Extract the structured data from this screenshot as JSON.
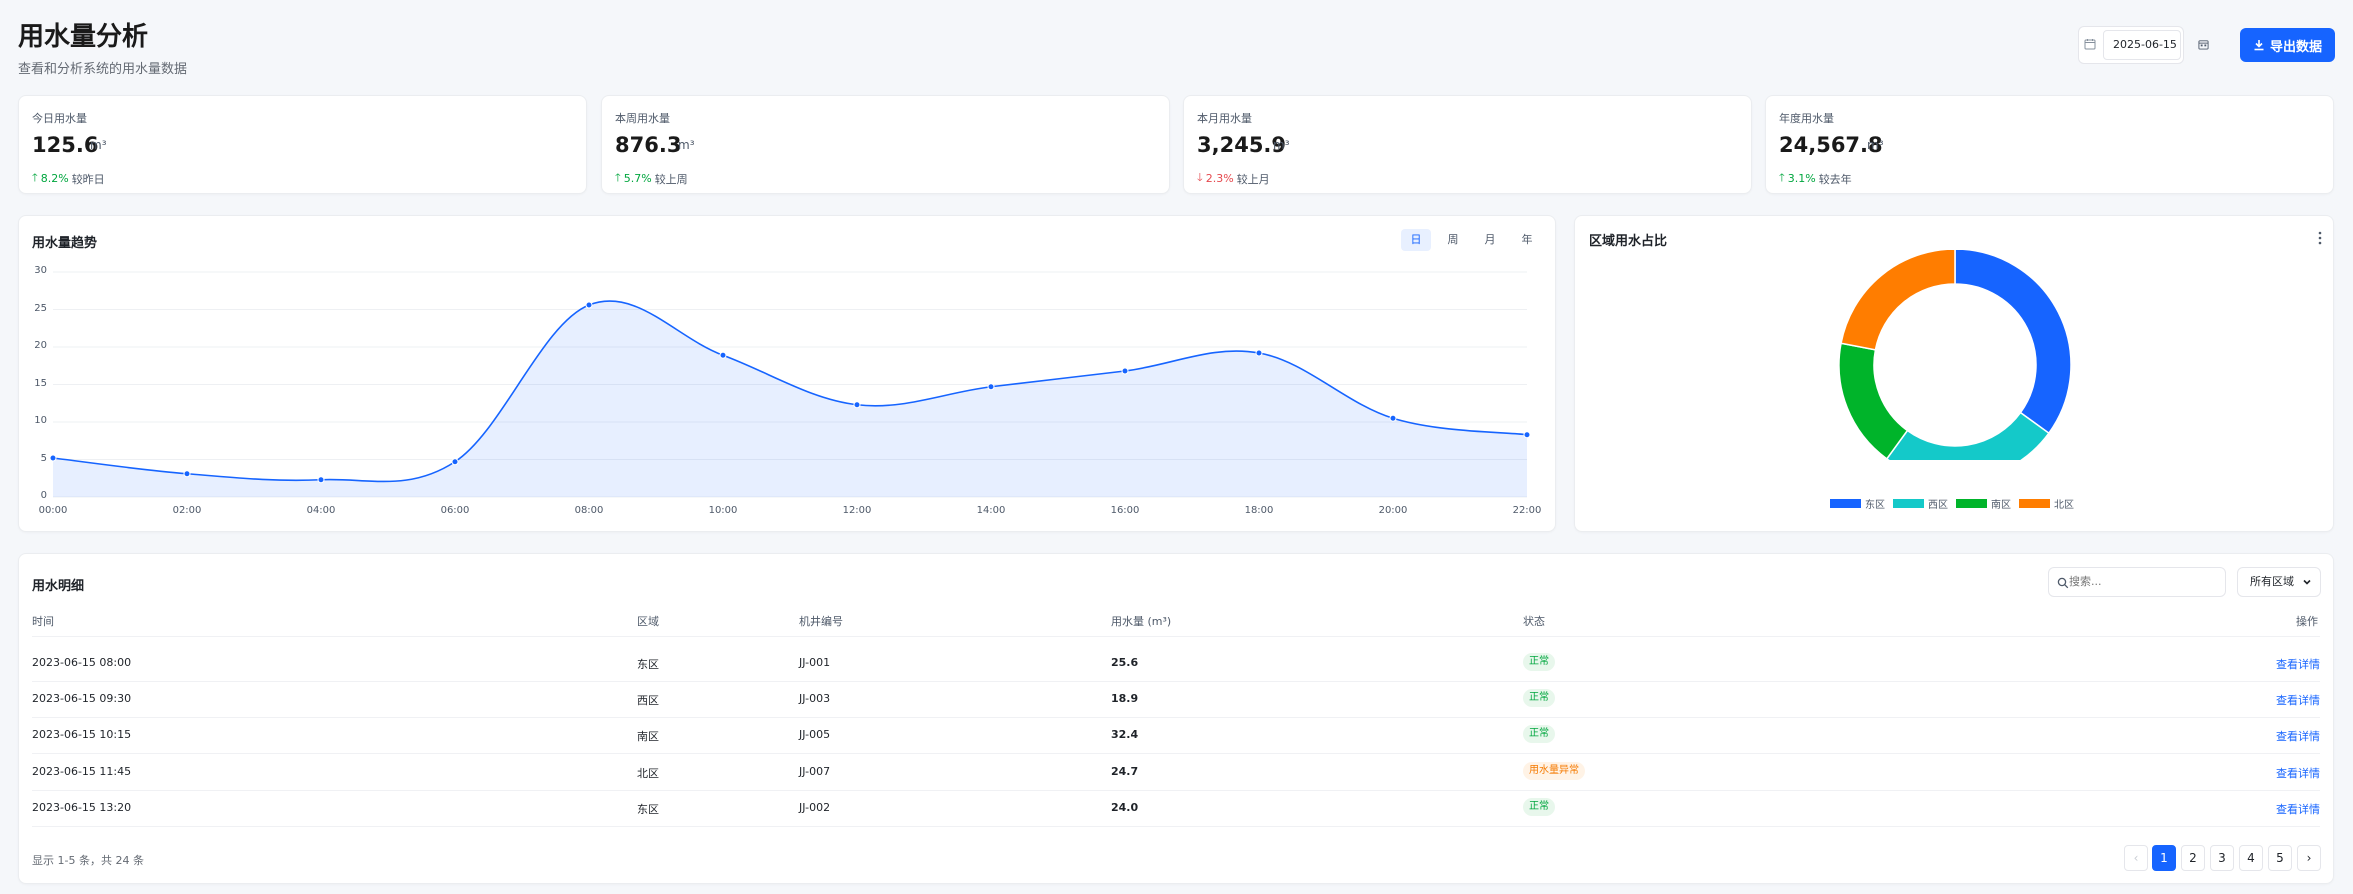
{
  "header": {
    "title": "用水量分析",
    "subtitle": "查看和分析系统的用水量数据",
    "date_value": "2025-06-15",
    "export_label": "导出数据"
  },
  "stats": [
    {
      "label": "今日用水量",
      "value": "125.6",
      "unit": "m³",
      "change": "8.2%",
      "direction": "up",
      "compare": "较昨日"
    },
    {
      "label": "本周用水量",
      "value": "876.3",
      "unit": "m³",
      "change": "5.7%",
      "direction": "up",
      "compare": "较上周"
    },
    {
      "label": "本月用水量",
      "value": "3,245.9",
      "unit": "m³",
      "change": "2.3%",
      "direction": "down",
      "compare": "较上月"
    },
    {
      "label": "年度用水量",
      "value": "24,567.8",
      "unit": "m³",
      "change": "3.1%",
      "direction": "up",
      "compare": "较去年"
    }
  ],
  "trend_panel": {
    "title": "用水量趋势",
    "tabs": [
      "日",
      "周",
      "月",
      "年"
    ],
    "active_tab": 0
  },
  "region_panel": {
    "title": "区域用水占比"
  },
  "chart_data": [
    {
      "type": "area",
      "title": "用水量趋势",
      "x": [
        "00:00",
        "02:00",
        "04:00",
        "06:00",
        "08:00",
        "10:00",
        "12:00",
        "14:00",
        "16:00",
        "18:00",
        "20:00",
        "22:00"
      ],
      "values": [
        5.2,
        3.1,
        2.3,
        4.7,
        25.6,
        18.9,
        12.3,
        14.7,
        16.8,
        19.2,
        10.5,
        8.3
      ],
      "ylim": [
        0,
        30
      ],
      "yticks": [
        "0",
        "5",
        "10",
        "15",
        "20",
        "25",
        "30"
      ],
      "grid": true,
      "color": "#1664ff"
    },
    {
      "type": "pie",
      "title": "区域用水占比",
      "variant": "doughnut",
      "labels": [
        "东区",
        "西区",
        "南区",
        "北区"
      ],
      "values": [
        35,
        25,
        18,
        22
      ],
      "colors": [
        "#1664ff",
        "#14c9c9",
        "#00b42a",
        "#ff7d00"
      ],
      "legend": "bottom"
    }
  ],
  "table": {
    "title": "用水明细",
    "search_placeholder": "搜索...",
    "region_filter": "所有区域",
    "columns": [
      "时间",
      "区域",
      "机井编号",
      "用水量 (m³)",
      "状态",
      "操作"
    ],
    "rows": [
      {
        "time": "2023-06-15 08:00",
        "region": "东区",
        "well": "JJ-001",
        "usage": "25.6",
        "status": "正常",
        "status_type": "ok",
        "action": "查看详情"
      },
      {
        "time": "2023-06-15 09:30",
        "region": "西区",
        "well": "JJ-003",
        "usage": "18.9",
        "status": "正常",
        "status_type": "ok",
        "action": "查看详情"
      },
      {
        "time": "2023-06-15 10:15",
        "region": "南区",
        "well": "JJ-005",
        "usage": "32.4",
        "status": "正常",
        "status_type": "ok",
        "action": "查看详情"
      },
      {
        "time": "2023-06-15 11:45",
        "region": "北区",
        "well": "JJ-007",
        "usage": "24.7",
        "status": "用水量异常",
        "status_type": "warn",
        "action": "查看详情"
      },
      {
        "time": "2023-06-15 13:20",
        "region": "东区",
        "well": "JJ-002",
        "usage": "24.0",
        "status": "正常",
        "status_type": "ok",
        "action": "查看详情"
      }
    ],
    "pagination_info": "显示 1-5 条，共 24 条",
    "pages": [
      "1",
      "2",
      "3",
      "4",
      "5"
    ],
    "current_page": 1,
    "prev_label": "‹",
    "next_label": "›"
  }
}
